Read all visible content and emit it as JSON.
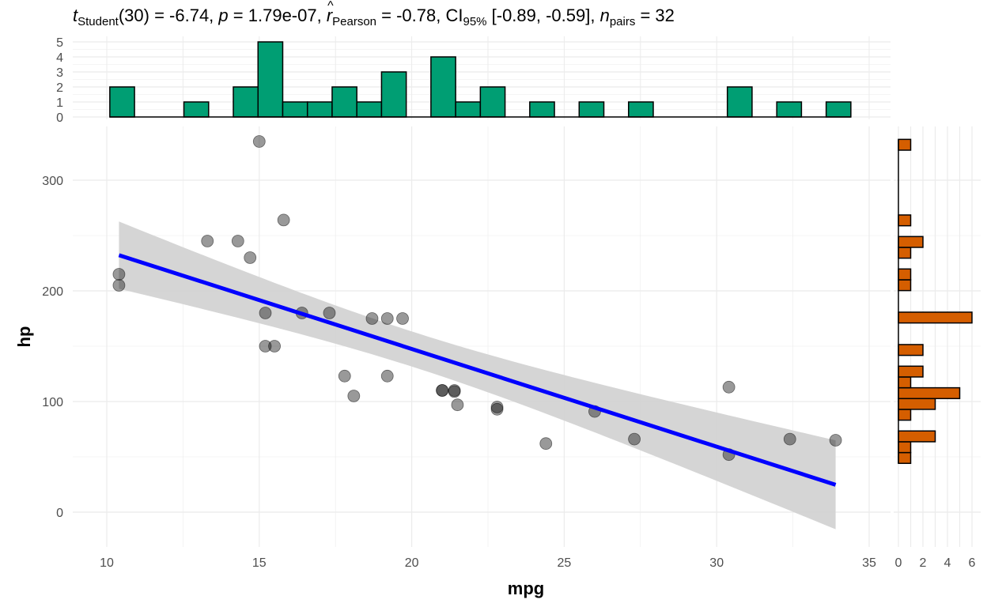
{
  "title": {
    "t_sym": "t",
    "t_sub": "Student",
    "t_val": "(30) = -6.74, ",
    "p_sym": "p",
    "p_val": " = 1.79e-07, ",
    "r_sym": "r",
    "r_sub": "Pearson",
    "r_val": " = -0.78, CI",
    "ci_sub": "95%",
    "ci_val": " [-0.89, -0.59], ",
    "n_sym": "n",
    "n_sub": "pairs",
    "n_val": " = 32"
  },
  "chart_data": {
    "type": "scatter",
    "xlabel": "mpg",
    "ylabel": "hp",
    "xlim": [
      9,
      36
    ],
    "ylim": [
      -30,
      345
    ],
    "xticks": [
      "10",
      "15",
      "20",
      "25",
      "30",
      "35"
    ],
    "yticks": [
      "0",
      "100",
      "200",
      "300"
    ],
    "grid": true,
    "points": [
      [
        21.0,
        110
      ],
      [
        21.0,
        110
      ],
      [
        22.8,
        93
      ],
      [
        21.4,
        110
      ],
      [
        18.7,
        175
      ],
      [
        18.1,
        105
      ],
      [
        14.3,
        245
      ],
      [
        24.4,
        62
      ],
      [
        22.8,
        95
      ],
      [
        19.2,
        123
      ],
      [
        17.8,
        123
      ],
      [
        16.4,
        180
      ],
      [
        17.3,
        180
      ],
      [
        15.2,
        180
      ],
      [
        10.4,
        205
      ],
      [
        10.4,
        215
      ],
      [
        14.7,
        230
      ],
      [
        32.4,
        66
      ],
      [
        30.4,
        52
      ],
      [
        33.9,
        65
      ],
      [
        21.5,
        97
      ],
      [
        15.5,
        150
      ],
      [
        15.2,
        150
      ],
      [
        13.3,
        245
      ],
      [
        19.2,
        175
      ],
      [
        27.3,
        66
      ],
      [
        26.0,
        91
      ],
      [
        30.4,
        113
      ],
      [
        15.8,
        264
      ],
      [
        19.7,
        175
      ],
      [
        15.0,
        335
      ],
      [
        21.4,
        109
      ]
    ],
    "regression": {
      "intercept": 324.08,
      "slope": -8.83,
      "resid_se": 43.95,
      "n": 32,
      "xbar": 20.09,
      "sxx": 1126.0,
      "tcrit": 2.042,
      "color": "#0000FF",
      "ci_color": "#D3D3D3"
    },
    "top_histogram": {
      "variable": "mpg",
      "fill": "#009E73",
      "bin_start": 10.1,
      "bin_width": 0.81,
      "counts": [
        2,
        0,
        0,
        1,
        0,
        2,
        5,
        1,
        1,
        2,
        1,
        3,
        0,
        4,
        1,
        2,
        0,
        1,
        0,
        1,
        0,
        1,
        0,
        0,
        0,
        2,
        0,
        1,
        0,
        1
      ],
      "yticks": [
        "0",
        "1",
        "2",
        "3",
        "4",
        "5"
      ]
    },
    "right_histogram": {
      "variable": "hp",
      "fill": "#D55E00",
      "bin_start": 44.1,
      "bin_width": 9.76,
      "counts": [
        1,
        1,
        3,
        0,
        1,
        3,
        5,
        1,
        2,
        0,
        2,
        0,
        0,
        6,
        0,
        0,
        1,
        1,
        0,
        1,
        2,
        0,
        1,
        0,
        0,
        0,
        0,
        0,
        0,
        1
      ],
      "xticks": [
        "0",
        "2",
        "4",
        "6"
      ]
    },
    "point_color": "#000000"
  }
}
